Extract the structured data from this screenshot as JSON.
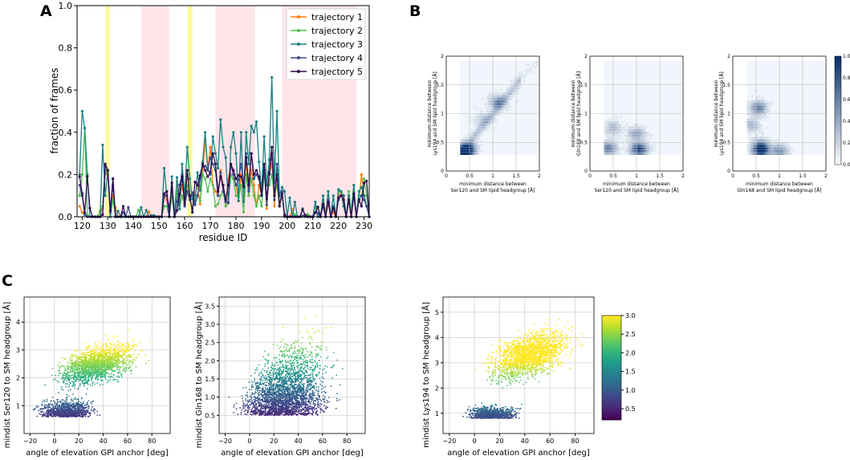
{
  "panels": {
    "A": {
      "label": "A",
      "chart_data": {
        "type": "line",
        "xlabel": "residue ID",
        "ylabel": "fraction of frames",
        "xlim": [
          118,
          232
        ],
        "ylim": [
          0,
          1
        ],
        "xticks": [
          "120",
          "130",
          "140",
          "150",
          "160",
          "170",
          "180",
          "190",
          "200",
          "210",
          "220",
          "230"
        ],
        "yticks": [
          "0.0",
          "0.2",
          "0.4",
          "0.6",
          "0.8",
          "1.0"
        ],
        "legend_position": "top-right",
        "shaded_regions": [
          {
            "color": "#fffaa0",
            "x": [
              129,
              130.8
            ]
          },
          {
            "color": "#ffe5ea",
            "x": [
              143,
              154
            ]
          },
          {
            "color": "#fffaa0",
            "x": [
              161,
              163
            ]
          },
          {
            "color": "#ffe5ea",
            "x": [
              172,
              187.5
            ]
          },
          {
            "color": "#ffe5ea",
            "x": [
              198,
              227
            ]
          }
        ],
        "series": [
          {
            "name": "trajectory 1",
            "color": "#ff7f0e"
          },
          {
            "name": "trajectory 2",
            "color": "#4fbf4f"
          },
          {
            "name": "trajectory 3",
            "color": "#1a8080"
          },
          {
            "name": "trajectory 4",
            "color": "#3b4a8f"
          },
          {
            "name": "trajectory 5",
            "color": "#2e0a4d"
          }
        ]
      }
    },
    "B": {
      "label": "B",
      "chart_data": {
        "type": "heatmap",
        "xlim": [
          0,
          2
        ],
        "ylim": [
          0,
          2
        ],
        "ticks": [
          "0",
          "0.5",
          "1",
          "1.5",
          "2"
        ],
        "colorbar": {
          "ticks": [
            "0.0",
            "0.2",
            "0.4",
            "0.6",
            "0.8",
            "1.0"
          ],
          "range": [
            0,
            1
          ],
          "cmap": "Blues"
        },
        "subplots": [
          {
            "xlabel1": "minimum distance between",
            "xlabel2": "Ser120 and SM lipid headgroup [Å]",
            "ylabel1": "minimum distance between",
            "ylabel2": "Lys194 and SM lipid headgroup [Å]",
            "clusters": [
              [
                0.45,
                0.4,
                0.7
              ],
              [
                0.4,
                0.33,
                1.0
              ],
              [
                1.1,
                1.2,
                0.5
              ],
              [
                0.8,
                0.9,
                0.2
              ]
            ]
          },
          {
            "xlabel1": "minimum distance between",
            "xlabel2": "Ser120 and SM lipid headgroup [Å]",
            "ylabel1": "minimum distance between",
            "ylabel2": "Gln168 and SM lipid headgroup [Å]",
            "clusters": [
              [
                0.4,
                0.4,
                0.6
              ],
              [
                1.05,
                0.38,
                0.9
              ],
              [
                1.0,
                0.65,
                0.4
              ],
              [
                0.5,
                0.75,
                0.3
              ]
            ]
          },
          {
            "xlabel1": "minimum distance between",
            "xlabel2": "Gln168 and SM lipid headgroup [Å]",
            "ylabel1": "minimum distance between",
            "ylabel2": "Lys194 and SM lipid headgroup [Å]",
            "clusters": [
              [
                0.55,
                1.1,
                0.6
              ],
              [
                0.6,
                0.35,
                0.9
              ],
              [
                0.6,
                0.45,
                0.5
              ],
              [
                1.0,
                0.35,
                0.5
              ],
              [
                0.4,
                0.8,
                0.3
              ]
            ]
          }
        ]
      }
    },
    "C": {
      "label": "C",
      "chart_data": {
        "type": "scatter",
        "xlabel": "angle of elevation GPI anchor [deg]",
        "xlim": [
          -25,
          95
        ],
        "xticks": [
          "−20",
          "0",
          "20",
          "40",
          "60",
          "80"
        ],
        "colorbar": {
          "ticks": [
            "0.5",
            "1.0",
            "1.5",
            "2.0",
            "2.5",
            "3.0"
          ],
          "range": [
            0.2,
            3.0
          ],
          "cmap": "viridis"
        },
        "subplots": [
          {
            "ylabel": "mindist Ser120 to SM headgroup [Å]",
            "ylim": [
              0.0,
              4.9
            ],
            "yticks": [
              "1",
              "2",
              "3",
              "4"
            ]
          },
          {
            "ylabel": "mindist Gln168 to SM headgroup [Å]",
            "ylim": [
              0.0,
              3.75
            ],
            "yticks": [
              "0.5",
              "1.0",
              "1.5",
              "2.0",
              "2.5",
              "3.0",
              "3.5"
            ]
          },
          {
            "ylabel": "mindist Lys194 to SM headgroup [Å]",
            "ylim": [
              0.2,
              5.6
            ],
            "yticks": [
              "1",
              "2",
              "3",
              "4",
              "5"
            ]
          }
        ]
      }
    }
  }
}
